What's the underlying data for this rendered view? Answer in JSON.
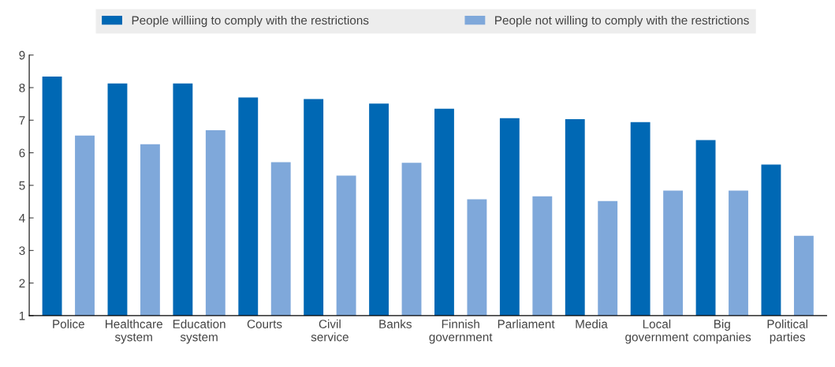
{
  "chart_data": {
    "type": "bar",
    "categories": [
      "Police",
      "Healthcare system",
      "Education system",
      "Courts",
      "Civil service",
      "Banks",
      "Finnish government",
      "Parliament",
      "Media",
      "Local government",
      "Big companies",
      "Political parties"
    ],
    "series": [
      {
        "name": "People williing to comply with the restrictions",
        "color": "#0068b4",
        "values": [
          8.34,
          8.13,
          8.13,
          7.7,
          7.65,
          7.51,
          7.35,
          7.06,
          7.03,
          6.94,
          6.39,
          5.64
        ]
      },
      {
        "name": "People not willing to comply with the restrictions",
        "color": "#7fa8da",
        "values": [
          6.53,
          6.26,
          6.69,
          5.71,
          5.3,
          5.69,
          4.57,
          4.66,
          4.52,
          4.84,
          4.84,
          3.45
        ]
      }
    ],
    "ylim": [
      1,
      9
    ],
    "yticks": [
      1,
      2,
      3,
      4,
      5,
      6,
      7,
      8,
      9
    ],
    "grid": false,
    "legend": "top"
  }
}
